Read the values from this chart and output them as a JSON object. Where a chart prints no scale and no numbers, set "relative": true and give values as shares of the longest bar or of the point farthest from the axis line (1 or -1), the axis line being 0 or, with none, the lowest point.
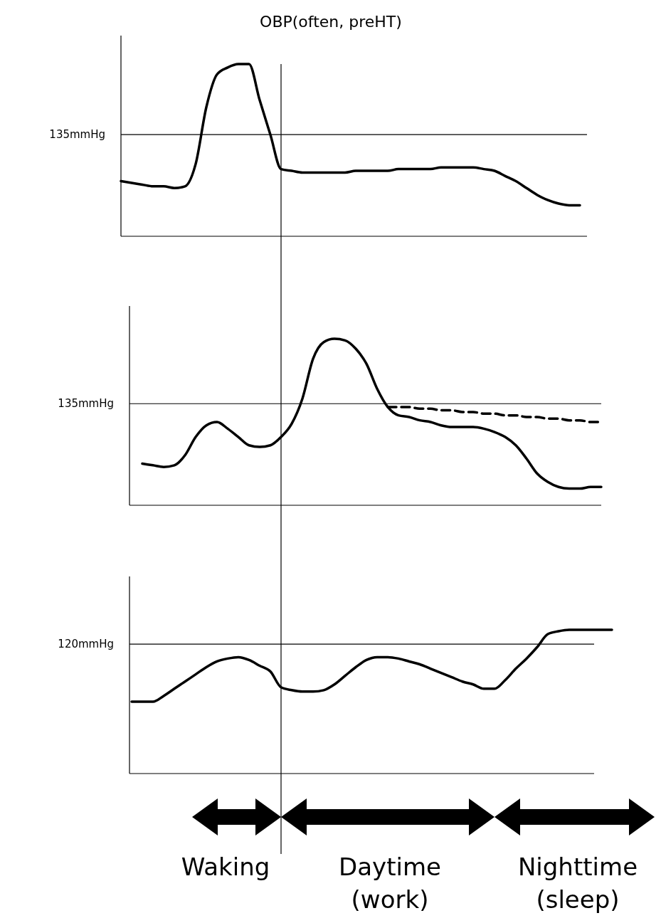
{
  "chart_data": [
    {
      "type": "line",
      "title": "OBP(often, preHT)",
      "relative": true,
      "categories": [
        null,
        null,
        null,
        null,
        null,
        null,
        null,
        null,
        null,
        null,
        null,
        null,
        null,
        null,
        null,
        null,
        null,
        null,
        null,
        null,
        null,
        null,
        null,
        null,
        null,
        null,
        null,
        null,
        null,
        null,
        null,
        null,
        null,
        null,
        null,
        null,
        null,
        null,
        null,
        null,
        null,
        null,
        null,
        null,
        null,
        null,
        null
      ],
      "series": [
        {
          "color": "#000000",
          "line_style": "solid",
          "values": [
            0.32,
            0.31,
            0.3,
            0.29,
            0.29,
            0.28,
            0.29,
            0.42,
            0.75,
            0.94,
            0.98,
            1.0,
            1.0,
            0.79,
            0.59,
            0.39,
            0.38,
            0.37,
            0.37,
            0.37,
            0.37,
            0.37,
            0.38,
            0.38,
            0.38,
            0.38,
            0.39,
            0.39,
            0.39,
            0.39,
            0.4,
            0.4,
            0.4,
            0.4,
            0.39,
            0.38,
            0.35,
            0.32,
            0.28,
            0.24,
            0.21,
            0.19,
            0.18,
            0.18,
            null,
            null,
            null
          ]
        }
      ],
      "ref_lines": [
        {
          "axis": "y",
          "value": 0.59,
          "label": "135mmHg"
        }
      ]
    },
    {
      "type": "line",
      "relative": true,
      "categories": [
        null,
        null,
        null,
        null,
        null,
        null,
        null,
        null,
        null,
        null,
        null,
        null,
        null,
        null,
        null,
        null,
        null,
        null,
        null,
        null,
        null,
        null,
        null,
        null,
        null,
        null,
        null,
        null,
        null,
        null,
        null,
        null,
        null,
        null,
        null,
        null,
        null,
        null,
        null,
        null,
        null,
        null,
        null,
        null,
        null,
        null,
        null
      ],
      "series": [
        {
          "color": "#000000",
          "line_style": "solid",
          "values": [
            null,
            null,
            0.25,
            0.24,
            0.23,
            0.24,
            0.3,
            0.41,
            0.48,
            0.5,
            0.46,
            0.41,
            0.36,
            0.35,
            0.36,
            0.41,
            0.49,
            0.64,
            0.88,
            0.98,
            1.0,
            0.99,
            0.94,
            0.85,
            0.7,
            0.59,
            0.54,
            0.53,
            0.51,
            0.5,
            0.48,
            0.47,
            0.47,
            0.47,
            0.46,
            0.44,
            0.41,
            0.36,
            0.28,
            0.19,
            0.14,
            0.11,
            0.1,
            0.1,
            0.11,
            0.11,
            null
          ]
        },
        {
          "color": "#000000",
          "line_style": "dashed",
          "values": [
            null,
            null,
            null,
            null,
            null,
            null,
            null,
            null,
            null,
            null,
            null,
            null,
            null,
            null,
            null,
            null,
            null,
            null,
            null,
            null,
            null,
            null,
            null,
            null,
            null,
            0.59,
            0.59,
            0.59,
            0.58,
            0.58,
            0.57,
            0.57,
            0.56,
            0.56,
            0.55,
            0.55,
            0.54,
            0.54,
            0.53,
            0.53,
            0.52,
            0.52,
            0.51,
            0.51,
            0.5,
            0.5,
            null
          ]
        }
      ],
      "ref_lines": [
        {
          "axis": "y",
          "value": 0.61,
          "label": "135mmHg"
        }
      ]
    },
    {
      "type": "line",
      "relative": true,
      "categories": [
        null,
        null,
        null,
        null,
        null,
        null,
        null,
        null,
        null,
        null,
        null,
        null,
        null,
        null,
        null,
        null,
        null,
        null,
        null,
        null,
        null,
        null,
        null,
        null,
        null,
        null,
        null,
        null,
        null,
        null,
        null,
        null,
        null,
        null,
        null,
        null,
        null,
        null,
        null,
        null,
        null,
        null,
        null,
        null,
        null,
        null,
        null
      ],
      "series": [
        {
          "color": "#000000",
          "line_style": "solid",
          "values": [
            null,
            0.5,
            0.5,
            0.5,
            0.54,
            0.59,
            0.64,
            0.69,
            0.74,
            0.78,
            0.8,
            0.81,
            0.79,
            0.75,
            0.71,
            0.6,
            0.58,
            0.57,
            0.57,
            0.58,
            0.62,
            0.68,
            0.74,
            0.79,
            0.81,
            0.81,
            0.8,
            0.78,
            0.76,
            0.73,
            0.7,
            0.67,
            0.64,
            0.62,
            0.59,
            0.59,
            0.65,
            0.73,
            0.8,
            0.88,
            0.97,
            0.99,
            1.0,
            1.0,
            1.0,
            1.0,
            1.0
          ]
        }
      ],
      "ref_lines": [
        {
          "axis": "y",
          "value": 0.9,
          "label": "120mmHg"
        }
      ],
      "annotations": [
        "Waking",
        "Daytime\n(work)",
        "Nighttime\n(sleep)"
      ]
    }
  ]
}
